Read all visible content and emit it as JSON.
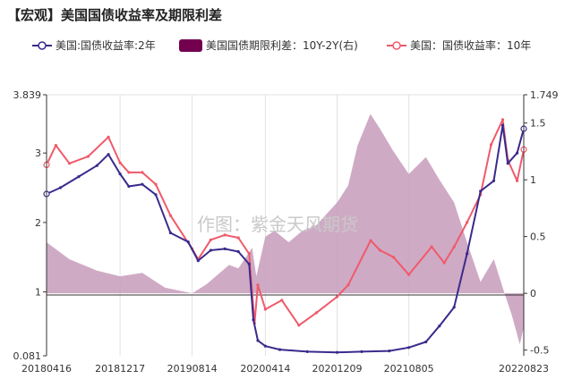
{
  "page": {
    "title": "【宏观】美国国债收益率及期限利差"
  },
  "watermark": "作图：紫金天风期货",
  "chart_data": {
    "type": "line",
    "title": "【宏观】美国国债收益率及期限利差",
    "x_tick_labels": [
      "20180416",
      "20181217",
      "20190814",
      "20200414",
      "20201209",
      "20210805",
      "20220823"
    ],
    "x_range": [
      "2018-04-16",
      "2022-08-23"
    ],
    "y_left": {
      "min": 0.081,
      "max": 3.839,
      "ticks": [
        "3.839",
        "3",
        "2",
        "1",
        "0.081"
      ],
      "tick_values": [
        3.839,
        3,
        2,
        1,
        0.081
      ]
    },
    "y_right": {
      "min": -0.55,
      "max": 1.749,
      "ticks": [
        "1.749",
        "1.5",
        "1",
        "0.5",
        "0",
        "-0.5"
      ],
      "tick_values": [
        1.749,
        1.5,
        1,
        0.5,
        0,
        -0.5
      ]
    },
    "grid": "vertical",
    "legend_position": "top",
    "series": [
      {
        "name": "美国:国债收益率:2年",
        "axis": "left",
        "style": "line",
        "color": "#3b2a8c",
        "points": [
          [
            "2018-04-16",
            2.41
          ],
          [
            "2018-06-01",
            2.5
          ],
          [
            "2018-08-01",
            2.66
          ],
          [
            "2018-10-01",
            2.82
          ],
          [
            "2018-11-08",
            2.98
          ],
          [
            "2018-12-17",
            2.7
          ],
          [
            "2019-01-15",
            2.52
          ],
          [
            "2019-03-01",
            2.55
          ],
          [
            "2019-04-15",
            2.4
          ],
          [
            "2019-06-03",
            1.85
          ],
          [
            "2019-08-01",
            1.72
          ],
          [
            "2019-09-03",
            1.45
          ],
          [
            "2019-10-15",
            1.6
          ],
          [
            "2019-12-01",
            1.62
          ],
          [
            "2020-01-15",
            1.58
          ],
          [
            "2020-02-20",
            1.4
          ],
          [
            "2020-03-05",
            0.6
          ],
          [
            "2020-03-20",
            0.3
          ],
          [
            "2020-04-14",
            0.22
          ],
          [
            "2020-06-01",
            0.17
          ],
          [
            "2020-09-01",
            0.14
          ],
          [
            "2020-12-09",
            0.13
          ],
          [
            "2021-03-01",
            0.14
          ],
          [
            "2021-06-01",
            0.15
          ],
          [
            "2021-08-05",
            0.2
          ],
          [
            "2021-10-01",
            0.28
          ],
          [
            "2021-11-15",
            0.51
          ],
          [
            "2022-01-03",
            0.78
          ],
          [
            "2022-02-15",
            1.55
          ],
          [
            "2022-04-01",
            2.45
          ],
          [
            "2022-05-15",
            2.6
          ],
          [
            "2022-06-14",
            3.4
          ],
          [
            "2022-07-01",
            2.85
          ],
          [
            "2022-08-01",
            3.0
          ],
          [
            "2022-08-23",
            3.35
          ]
        ]
      },
      {
        "name": "美国国债期限利差：10Y-2Y(右)",
        "axis": "right",
        "style": "area",
        "color": "#73004f",
        "points": [
          [
            "2018-04-16",
            0.45
          ],
          [
            "2018-07-01",
            0.3
          ],
          [
            "2018-10-01",
            0.2
          ],
          [
            "2018-12-17",
            0.15
          ],
          [
            "2019-03-01",
            0.18
          ],
          [
            "2019-05-15",
            0.05
          ],
          [
            "2019-08-14",
            0.0
          ],
          [
            "2019-10-01",
            0.08
          ],
          [
            "2019-12-15",
            0.25
          ],
          [
            "2020-01-15",
            0.22
          ],
          [
            "2020-03-01",
            0.4
          ],
          [
            "2020-03-15",
            0.15
          ],
          [
            "2020-04-14",
            0.5
          ],
          [
            "2020-05-15",
            0.55
          ],
          [
            "2020-07-01",
            0.45
          ],
          [
            "2020-08-15",
            0.55
          ],
          [
            "2020-10-01",
            0.6
          ],
          [
            "2020-12-09",
            0.8
          ],
          [
            "2021-01-15",
            0.95
          ],
          [
            "2021-02-15",
            1.3
          ],
          [
            "2021-03-30",
            1.58
          ],
          [
            "2021-05-01",
            1.45
          ],
          [
            "2021-06-15",
            1.25
          ],
          [
            "2021-08-05",
            1.05
          ],
          [
            "2021-10-01",
            1.2
          ],
          [
            "2021-11-15",
            1.0
          ],
          [
            "2022-01-03",
            0.8
          ],
          [
            "2022-02-15",
            0.45
          ],
          [
            "2022-04-01",
            0.1
          ],
          [
            "2022-05-15",
            0.3
          ],
          [
            "2022-06-14",
            0.05
          ],
          [
            "2022-07-15",
            -0.2
          ],
          [
            "2022-08-10",
            -0.45
          ],
          [
            "2022-08-23",
            -0.3
          ]
        ]
      },
      {
        "name": "美国：国债收益率：10年",
        "axis": "left",
        "style": "line",
        "color": "#ef5a6a",
        "points": [
          [
            "2018-04-16",
            2.83
          ],
          [
            "2018-05-17",
            3.11
          ],
          [
            "2018-07-01",
            2.85
          ],
          [
            "2018-09-01",
            2.95
          ],
          [
            "2018-11-08",
            3.23
          ],
          [
            "2018-12-17",
            2.86
          ],
          [
            "2019-01-15",
            2.72
          ],
          [
            "2019-03-01",
            2.72
          ],
          [
            "2019-04-15",
            2.55
          ],
          [
            "2019-06-03",
            2.1
          ],
          [
            "2019-08-14",
            1.62
          ],
          [
            "2019-09-03",
            1.47
          ],
          [
            "2019-10-15",
            1.75
          ],
          [
            "2019-12-01",
            1.82
          ],
          [
            "2020-01-15",
            1.78
          ],
          [
            "2020-02-20",
            1.55
          ],
          [
            "2020-03-09",
            0.55
          ],
          [
            "2020-03-20",
            1.1
          ],
          [
            "2020-04-14",
            0.75
          ],
          [
            "2020-06-08",
            0.88
          ],
          [
            "2020-08-04",
            0.52
          ],
          [
            "2020-10-01",
            0.7
          ],
          [
            "2020-12-09",
            0.93
          ],
          [
            "2021-01-15",
            1.1
          ],
          [
            "2021-03-31",
            1.74
          ],
          [
            "2021-05-01",
            1.6
          ],
          [
            "2021-06-15",
            1.5
          ],
          [
            "2021-08-05",
            1.25
          ],
          [
            "2021-10-20",
            1.65
          ],
          [
            "2021-12-01",
            1.42
          ],
          [
            "2022-01-03",
            1.65
          ],
          [
            "2022-02-15",
            2.0
          ],
          [
            "2022-04-01",
            2.4
          ],
          [
            "2022-05-06",
            3.12
          ],
          [
            "2022-06-14",
            3.48
          ],
          [
            "2022-07-01",
            2.9
          ],
          [
            "2022-08-01",
            2.6
          ],
          [
            "2022-08-23",
            3.05
          ]
        ]
      }
    ]
  }
}
